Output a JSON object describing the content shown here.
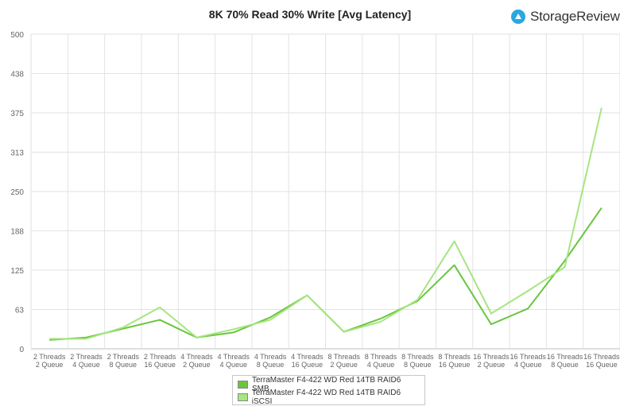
{
  "chart_data": {
    "type": "line",
    "title": "8K 70% Read 30% Write [Avg Latency]",
    "ylabel": "",
    "xlabel": "",
    "ylim": [
      0,
      500
    ],
    "yticks": [
      "0",
      "63",
      "125",
      "188",
      "250",
      "313",
      "375",
      "438",
      "500"
    ],
    "grid": true,
    "legend_position": "bottom",
    "categories": [
      [
        "2 Threads",
        "2 Queue"
      ],
      [
        "2 Threads",
        "4 Queue"
      ],
      [
        "2 Threads",
        "8 Queue"
      ],
      [
        "2 Threads",
        "16 Queue"
      ],
      [
        "4 Threads",
        "2 Queue"
      ],
      [
        "4 Threads",
        "4 Queue"
      ],
      [
        "4 Threads",
        "8 Queue"
      ],
      [
        "4 Threads",
        "16 Queue"
      ],
      [
        "8 Threads",
        "2 Queue"
      ],
      [
        "8 Threads",
        "4 Queue"
      ],
      [
        "8 Threads",
        "8 Queue"
      ],
      [
        "8 Threads",
        "16 Queue"
      ],
      [
        "16 Threads",
        "2 Queue"
      ],
      [
        "16 Threads",
        "4 Queue"
      ],
      [
        "16 Threads",
        "8 Queue"
      ],
      [
        "16 Threads",
        "16 Queue"
      ]
    ],
    "series": [
      {
        "name": "TerraMaster F4-422 WD Red 14TB RAID6 SMB",
        "color": "#6ac540",
        "values": [
          14,
          18,
          32,
          46,
          18,
          26,
          50,
          85,
          27,
          48,
          76,
          133,
          39,
          64,
          140,
          224
        ]
      },
      {
        "name": "TerraMaster F4-422 WD Red 14TB RAID6 iSCSI",
        "color": "#a6e57f",
        "values": [
          16,
          16,
          34,
          66,
          18,
          31,
          46,
          85,
          27,
          43,
          78,
          171,
          56,
          92,
          130,
          383
        ]
      }
    ]
  },
  "brand": {
    "text": "StorageReview",
    "logo_icon": "storagereview-logo-icon",
    "logo_color": "#29a8e0"
  }
}
